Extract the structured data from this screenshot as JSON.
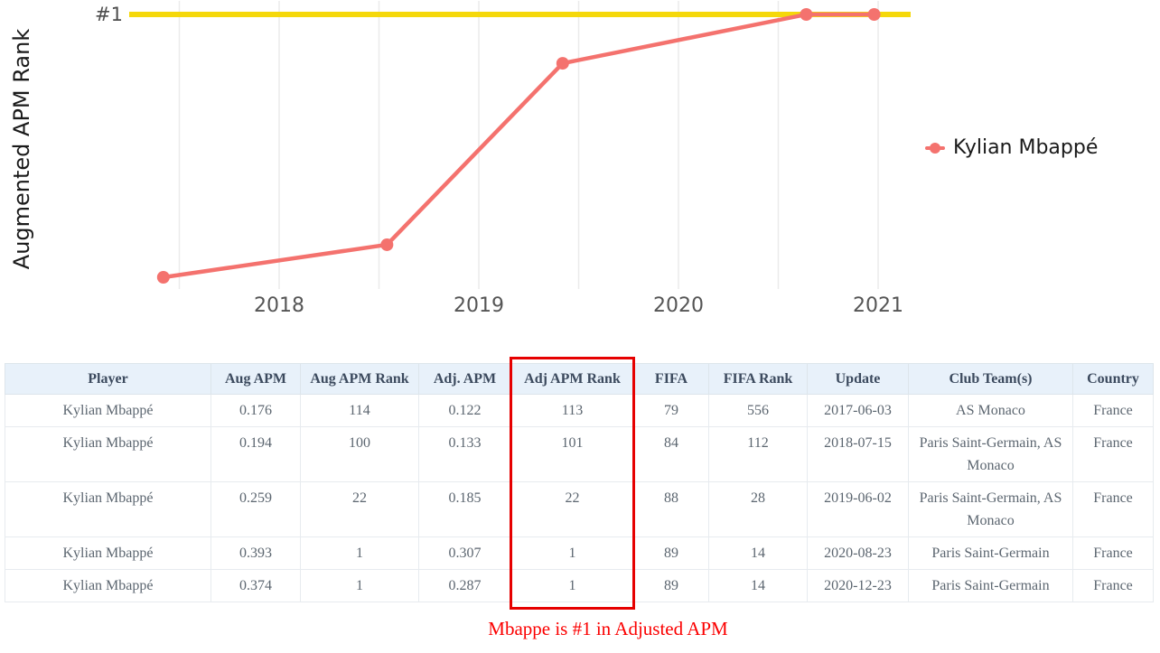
{
  "chart_data": {
    "type": "line",
    "title": "",
    "xlabel": "",
    "ylabel": "Augmented APM Rank",
    "y_axis_inverted": true,
    "x_tick_labels": [
      "2018",
      "2019",
      "2020",
      "2021"
    ],
    "gridlines_half_year": true,
    "legend_position": "right",
    "reference_line": {
      "label": "#1",
      "rank": 1,
      "color": "#f5d80a"
    },
    "series": [
      {
        "name": "Kylian Mbappé",
        "color": "#f4726e",
        "x_dates": [
          "2017-06-03",
          "2018-07-15",
          "2019-06-02",
          "2020-08-23",
          "2020-12-23"
        ],
        "x_years": [
          2017.42,
          2018.54,
          2019.42,
          2020.64,
          2020.98
        ],
        "values": [
          114,
          100,
          22,
          1,
          1
        ]
      }
    ]
  },
  "table": {
    "headers": [
      "Player",
      "Aug APM",
      "Aug APM Rank",
      "Adj. APM",
      "Adj APM Rank",
      "FIFA",
      "FIFA Rank",
      "Update",
      "Club Team(s)",
      "Country"
    ],
    "highlighted_column": "Adj APM Rank",
    "highlighted_column_index": 4,
    "rows": [
      [
        "Kylian Mbappé",
        "0.176",
        "114",
        "0.122",
        "113",
        "79",
        "556",
        "2017-06-03",
        "AS Monaco",
        "France"
      ],
      [
        "Kylian Mbappé",
        "0.194",
        "100",
        "0.133",
        "101",
        "84",
        "112",
        "2018-07-15",
        "Paris Saint-Germain, AS Monaco",
        "France"
      ],
      [
        "Kylian Mbappé",
        "0.259",
        "22",
        "0.185",
        "22",
        "88",
        "28",
        "2019-06-02",
        "Paris Saint-Germain, AS Monaco",
        "France"
      ],
      [
        "Kylian Mbappé",
        "0.393",
        "1",
        "0.307",
        "1",
        "89",
        "14",
        "2020-08-23",
        "Paris Saint-Germain",
        "France"
      ],
      [
        "Kylian Mbappé",
        "0.374",
        "1",
        "0.287",
        "1",
        "89",
        "14",
        "2020-12-23",
        "Paris Saint-Germain",
        "France"
      ]
    ]
  },
  "caption": {
    "text": "Mbappe is #1 in Adjusted APM",
    "color": "#fb0000"
  },
  "colors": {
    "series_line": "#f4726e",
    "reference_line": "#f5d80a",
    "gridline": "#ebebeb",
    "tick_label": "#555555",
    "axis_title": "#1a1a1a",
    "header_bg": "#e8f1fa",
    "header_text": "#3c4a5e",
    "body_text": "#5c6670",
    "highlight_border": "#e60000"
  }
}
